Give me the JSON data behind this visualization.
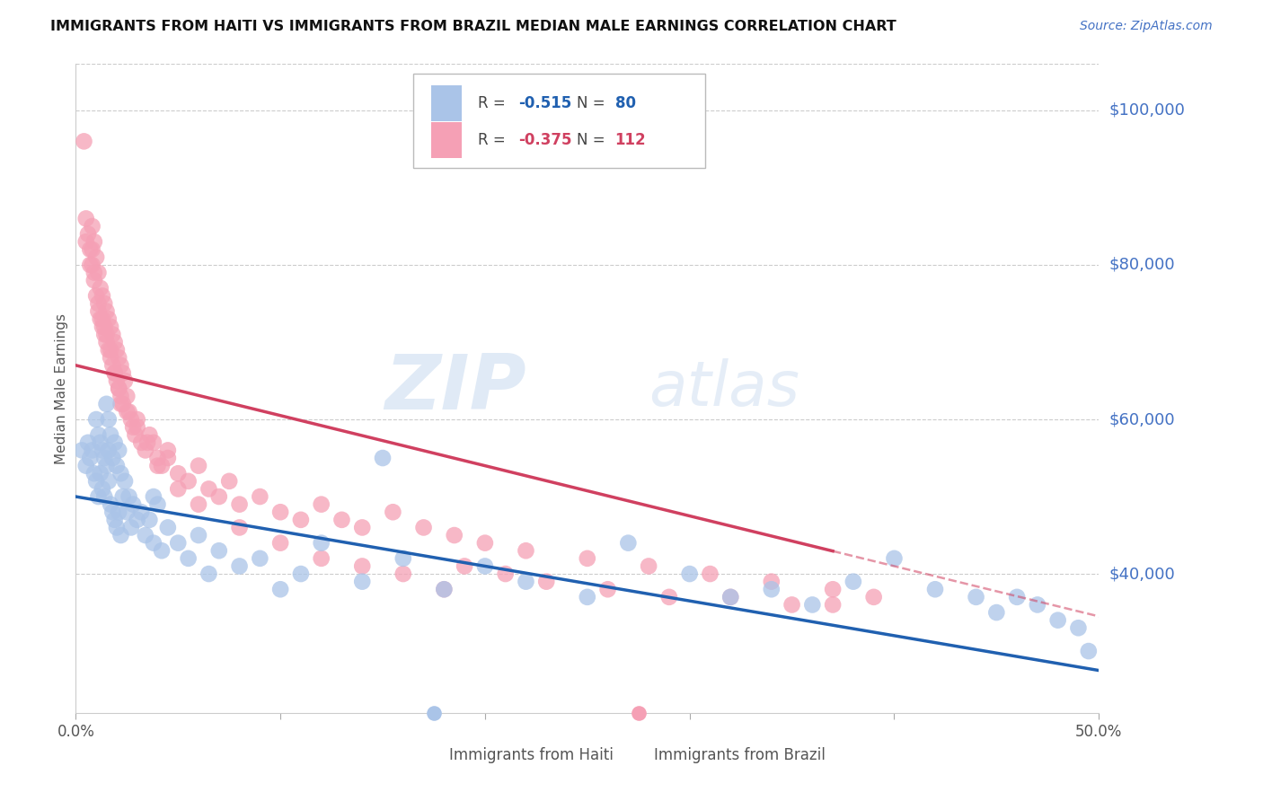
{
  "title": "IMMIGRANTS FROM HAITI VS IMMIGRANTS FROM BRAZIL MEDIAN MALE EARNINGS CORRELATION CHART",
  "source": "Source: ZipAtlas.com",
  "ylabel": "Median Male Earnings",
  "right_ytick_labels": [
    "$100,000",
    "$80,000",
    "$60,000",
    "$40,000"
  ],
  "right_ytick_values": [
    100000,
    80000,
    60000,
    40000
  ],
  "haiti_color": "#aac4e8",
  "brazil_color": "#f5a0b5",
  "haiti_line_color": "#2060b0",
  "brazil_line_color": "#d04060",
  "watermark_zip": "ZIP",
  "watermark_atlas": "atlas",
  "xmin": 0.0,
  "xmax": 0.5,
  "ymin": 22000,
  "ymax": 106000,
  "haiti_intercept": 50000,
  "haiti_slope": -45000,
  "brazil_intercept": 67000,
  "brazil_slope": -65000,
  "haiti_scatter_x": [
    0.003,
    0.005,
    0.006,
    0.007,
    0.008,
    0.009,
    0.01,
    0.01,
    0.011,
    0.011,
    0.012,
    0.012,
    0.013,
    0.013,
    0.014,
    0.014,
    0.015,
    0.015,
    0.016,
    0.016,
    0.016,
    0.017,
    0.017,
    0.018,
    0.018,
    0.019,
    0.019,
    0.02,
    0.02,
    0.021,
    0.021,
    0.022,
    0.022,
    0.023,
    0.024,
    0.025,
    0.026,
    0.027,
    0.028,
    0.03,
    0.032,
    0.034,
    0.036,
    0.038,
    0.04,
    0.042,
    0.045,
    0.05,
    0.055,
    0.06,
    0.065,
    0.07,
    0.08,
    0.09,
    0.1,
    0.11,
    0.12,
    0.14,
    0.16,
    0.18,
    0.2,
    0.22,
    0.25,
    0.27,
    0.3,
    0.32,
    0.34,
    0.36,
    0.38,
    0.4,
    0.42,
    0.44,
    0.45,
    0.46,
    0.47,
    0.48,
    0.49,
    0.495,
    0.038,
    0.15
  ],
  "haiti_scatter_y": [
    56000,
    54000,
    57000,
    55000,
    56000,
    53000,
    60000,
    52000,
    58000,
    50000,
    57000,
    53000,
    56000,
    51000,
    55000,
    50000,
    62000,
    54000,
    60000,
    56000,
    52000,
    58000,
    49000,
    55000,
    48000,
    57000,
    47000,
    54000,
    46000,
    56000,
    48000,
    53000,
    45000,
    50000,
    52000,
    48000,
    50000,
    46000,
    49000,
    47000,
    48000,
    45000,
    47000,
    44000,
    49000,
    43000,
    46000,
    44000,
    42000,
    45000,
    40000,
    43000,
    41000,
    42000,
    38000,
    40000,
    44000,
    39000,
    42000,
    38000,
    41000,
    39000,
    37000,
    44000,
    40000,
    37000,
    38000,
    36000,
    39000,
    42000,
    38000,
    37000,
    35000,
    37000,
    36000,
    34000,
    33000,
    30000,
    50000,
    55000
  ],
  "brazil_scatter_x": [
    0.004,
    0.005,
    0.006,
    0.007,
    0.008,
    0.008,
    0.009,
    0.009,
    0.01,
    0.01,
    0.011,
    0.011,
    0.012,
    0.012,
    0.013,
    0.013,
    0.014,
    0.014,
    0.015,
    0.015,
    0.016,
    0.016,
    0.017,
    0.017,
    0.018,
    0.018,
    0.019,
    0.019,
    0.02,
    0.02,
    0.021,
    0.021,
    0.022,
    0.022,
    0.023,
    0.023,
    0.024,
    0.025,
    0.026,
    0.027,
    0.028,
    0.029,
    0.03,
    0.032,
    0.034,
    0.036,
    0.038,
    0.04,
    0.042,
    0.045,
    0.05,
    0.055,
    0.06,
    0.065,
    0.07,
    0.075,
    0.08,
    0.09,
    0.1,
    0.11,
    0.12,
    0.13,
    0.14,
    0.155,
    0.17,
    0.185,
    0.2,
    0.22,
    0.25,
    0.28,
    0.31,
    0.34,
    0.37,
    0.39,
    0.005,
    0.007,
    0.009,
    0.011,
    0.013,
    0.015,
    0.017,
    0.019,
    0.021,
    0.025,
    0.03,
    0.035,
    0.04,
    0.05,
    0.06,
    0.08,
    0.1,
    0.12,
    0.14,
    0.16,
    0.18,
    0.008,
    0.014,
    0.022,
    0.045,
    0.19,
    0.21,
    0.23,
    0.26,
    0.29,
    0.32,
    0.35,
    0.37
  ],
  "brazil_scatter_y": [
    96000,
    86000,
    84000,
    82000,
    80000,
    85000,
    83000,
    79000,
    81000,
    76000,
    79000,
    74000,
    77000,
    73000,
    76000,
    72000,
    75000,
    71000,
    74000,
    70000,
    73000,
    69000,
    72000,
    68000,
    71000,
    67000,
    70000,
    66000,
    69000,
    65000,
    68000,
    64000,
    67000,
    63000,
    66000,
    62000,
    65000,
    63000,
    61000,
    60000,
    59000,
    58000,
    60000,
    57000,
    56000,
    58000,
    57000,
    55000,
    54000,
    56000,
    53000,
    52000,
    54000,
    51000,
    50000,
    52000,
    49000,
    50000,
    48000,
    47000,
    49000,
    47000,
    46000,
    48000,
    46000,
    45000,
    44000,
    43000,
    42000,
    41000,
    40000,
    39000,
    38000,
    37000,
    83000,
    80000,
    78000,
    75000,
    73000,
    71000,
    69000,
    66000,
    64000,
    61000,
    59000,
    57000,
    54000,
    51000,
    49000,
    46000,
    44000,
    42000,
    41000,
    40000,
    38000,
    82000,
    72000,
    62000,
    55000,
    41000,
    40000,
    39000,
    38000,
    37000,
    37000,
    36000,
    36000
  ]
}
